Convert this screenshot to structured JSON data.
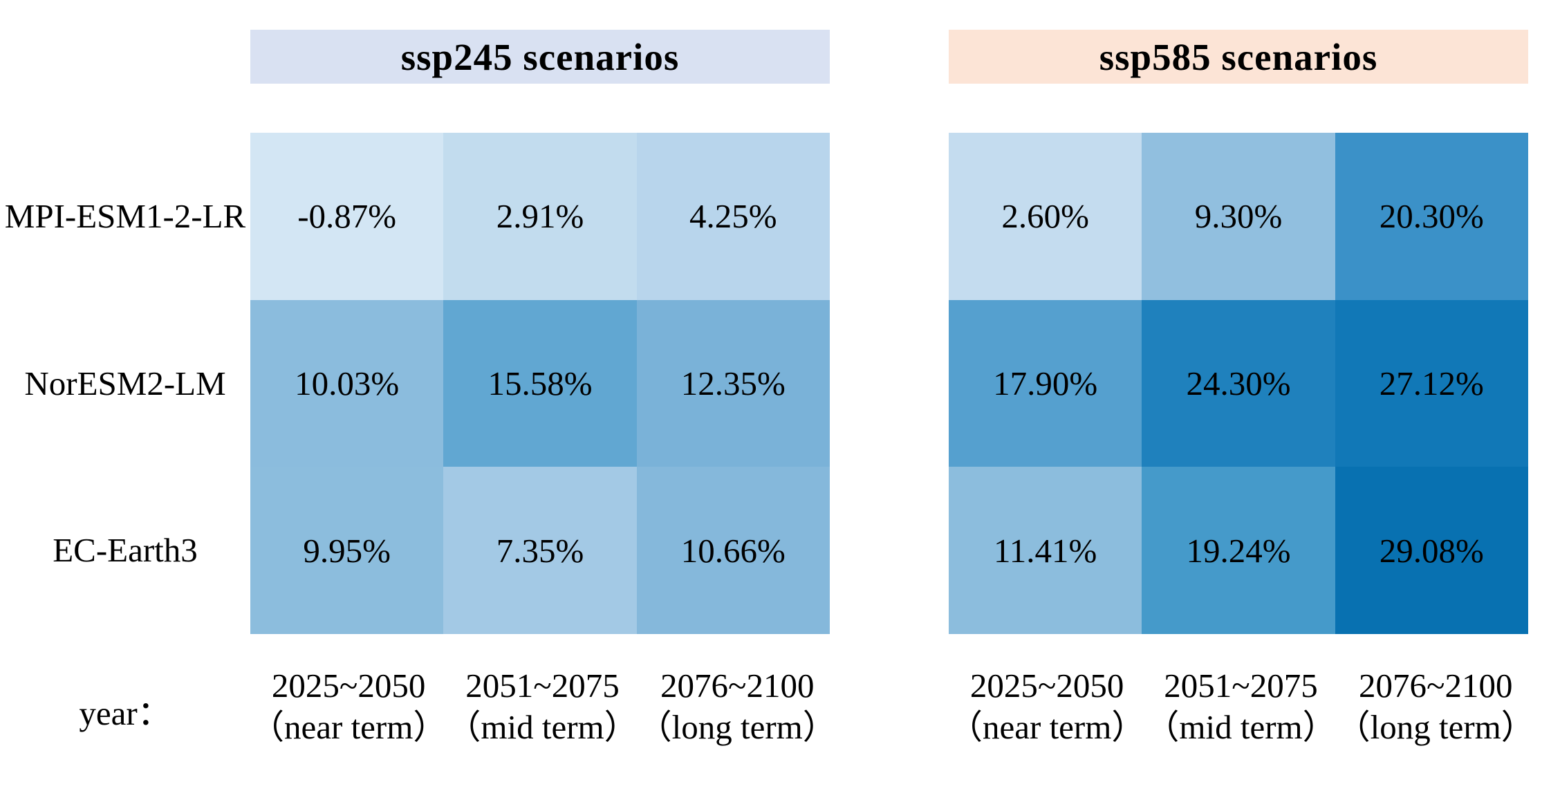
{
  "figure": {
    "year_label": "year：",
    "row_labels": [
      "MPI-ESM1-2-LR",
      "NorESM2-LM",
      "EC-Earth3"
    ],
    "columns": [
      {
        "period": "2025~2050",
        "term": "（near term）"
      },
      {
        "period": "2051~2075",
        "term": "（mid term）"
      },
      {
        "period": "2076~2100",
        "term": "（long term）"
      }
    ],
    "panels": [
      {
        "title": "ssp245 scenarios",
        "header_bg": "#d9e1f2",
        "cells": [
          {
            "label": "-0.87%",
            "color": "#d3e6f4"
          },
          {
            "label": "2.91%",
            "color": "#c2dcee"
          },
          {
            "label": "4.25%",
            "color": "#b8d5ec"
          },
          {
            "label": "10.03%",
            "color": "#8bbcdd"
          },
          {
            "label": "15.58%",
            "color": "#61a7d2"
          },
          {
            "label": "12.35%",
            "color": "#7ab2d8"
          },
          {
            "label": "9.95%",
            "color": "#8cbddd"
          },
          {
            "label": "7.35%",
            "color": "#a3c9e5"
          },
          {
            "label": "10.66%",
            "color": "#85b8db"
          }
        ]
      },
      {
        "title": "ssp585 scenarios",
        "header_bg": "#fce4d6",
        "cells": [
          {
            "label": "2.60%",
            "color": "#c4dcef"
          },
          {
            "label": "9.30%",
            "color": "#91bfdf"
          },
          {
            "label": "20.30%",
            "color": "#3b91c8"
          },
          {
            "label": "17.90%",
            "color": "#55a0cf"
          },
          {
            "label": "24.30%",
            "color": "#1f81bd"
          },
          {
            "label": "27.12%",
            "color": "#1178b7"
          },
          {
            "label": "11.41%",
            "color": "#8cbddd"
          },
          {
            "label": "19.24%",
            "color": "#459aca"
          },
          {
            "label": "29.08%",
            "color": "#0871b1"
          }
        ]
      }
    ]
  },
  "chart_data": {
    "type": "heatmap",
    "rows": [
      "MPI-ESM1-2-LR",
      "NorESM2-LM",
      "EC-Earth3"
    ],
    "columns": [
      "2025~2050 (near term)",
      "2051~2075 (mid term)",
      "2076~2100 (long term)"
    ],
    "xlabel": "year",
    "panels": [
      {
        "name": "ssp245 scenarios",
        "values_percent": [
          [
            -0.87,
            2.91,
            4.25
          ],
          [
            10.03,
            15.58,
            12.35
          ],
          [
            9.95,
            7.35,
            10.66
          ]
        ]
      },
      {
        "name": "ssp585 scenarios",
        "values_percent": [
          [
            2.6,
            9.3,
            20.3
          ],
          [
            17.9,
            24.3,
            27.12
          ],
          [
            11.41,
            19.24,
            29.08
          ]
        ]
      }
    ],
    "colorscale": {
      "min_value": -0.87,
      "max_value": 29.08,
      "min_color": "#d3e6f4",
      "max_color": "#0871b1",
      "higher_is_darker": true
    },
    "legend_position": "none",
    "grid": false
  }
}
